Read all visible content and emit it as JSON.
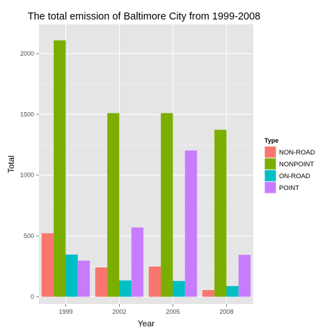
{
  "chart_data": {
    "type": "bar",
    "title": "The total emission of Baltimore City from 1999-2008",
    "xlabel": "Year",
    "ylabel": "Total",
    "categories": [
      "1999",
      "2002",
      "2005",
      "2008"
    ],
    "ylim": [
      -60,
      2240
    ],
    "yticks": [
      0,
      500,
      1000,
      1500,
      2000
    ],
    "grid": true,
    "legend": {
      "title": "Type",
      "position": "right"
    },
    "series": [
      {
        "name": "NON-ROAD",
        "color": "#f8766d",
        "values": [
          522,
          241,
          249,
          55
        ]
      },
      {
        "name": "NONPOINT",
        "color": "#7cae00",
        "values": [
          2108,
          1510,
          1510,
          1373
        ]
      },
      {
        "name": "ON-ROAD",
        "color": "#00bfc4",
        "values": [
          347,
          134,
          130,
          88
        ]
      },
      {
        "name": "POINT",
        "color": "#c77cff",
        "values": [
          297,
          570,
          1203,
          345
        ]
      }
    ]
  }
}
